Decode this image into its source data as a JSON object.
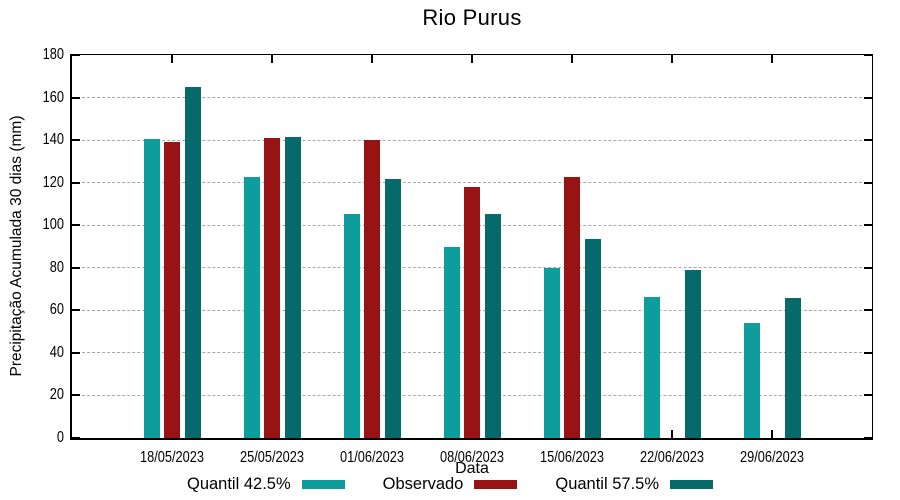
{
  "chart_data": {
    "type": "bar",
    "title": "Rio Purus",
    "xlabel": "Data",
    "ylabel": "Precipitação Acumulada 30 dias (mm)",
    "categories": [
      "18/05/2023",
      "25/05/2023",
      "01/06/2023",
      "08/06/2023",
      "15/06/2023",
      "22/06/2023",
      "29/06/2023"
    ],
    "series": [
      {
        "name": "Quantil 42.5%",
        "color": "#0E9D9D",
        "values": [
          140.5,
          122.5,
          105.5,
          90,
          80,
          66.5,
          54
        ]
      },
      {
        "name": "Observado",
        "color": "#981414",
        "values": [
          139,
          141,
          140,
          118,
          122.5,
          null,
          null
        ]
      },
      {
        "name": "Quantil 57.5%",
        "color": "#076A6A",
        "values": [
          165,
          141.5,
          121.5,
          105.5,
          93.5,
          79,
          66
        ]
      }
    ],
    "ylim": [
      0,
      180
    ],
    "yticks": [
      0,
      20,
      40,
      60,
      80,
      100,
      120,
      140,
      160,
      180
    ],
    "grid": "horizontal-dashed",
    "gridline_color": "#a9a9a9",
    "axis_color": "#000000",
    "background": "#ffffff",
    "legend_position": "bottom"
  }
}
